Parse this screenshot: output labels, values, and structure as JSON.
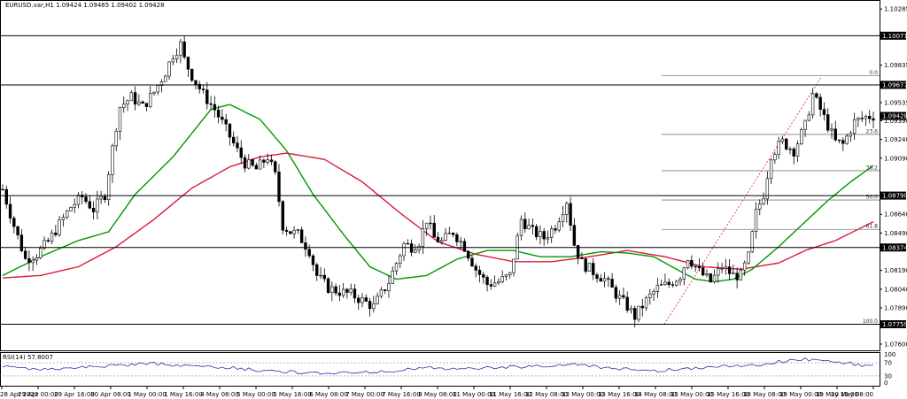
{
  "chart_data": {
    "type": "candlestick",
    "title": "EURUSD.var,H1  1.09424 1.09465 1.09402 1.09428",
    "price_axis": {
      "range": [
        1.0755,
        1.1035
      ],
      "ticks": [
        "1.10285",
        "1.09835",
        "1.09535",
        "1.09390",
        "1.09240",
        "1.09090",
        "1.08640",
        "1.08490",
        "1.08190",
        "1.08040",
        "1.07890",
        "1.07600"
      ]
    },
    "time_axis": {
      "labels": [
        "28 Apr 2020",
        "29 Apr 00:00",
        "29 Apr 16:00",
        "30 Apr 08:00",
        "1 May 00:00",
        "1 May 16:00",
        "4 May 08:00",
        "5 May 00:00",
        "5 May 16:00",
        "6 May 08:00",
        "7 May 00:00",
        "7 May 16:00",
        "8 May 08:00",
        "11 May 00:00",
        "11 May 16:00",
        "12 May 08:00",
        "13 May 00:00",
        "13 May 16:00",
        "14 May 08:00",
        "15 May 00:00",
        "15 May 16:00",
        "18 May 08:00",
        "19 May 00:00",
        "19 May 16:00",
        "20 May 08:00"
      ]
    },
    "horizontal_levels": [
      {
        "value": 1.10071,
        "label": "1.10071"
      },
      {
        "value": 1.09677,
        "label": "1.09677"
      },
      {
        "value": 1.0879,
        "label": "1.08790"
      },
      {
        "value": 1.08374,
        "label": "1.08374"
      },
      {
        "value": 1.07759,
        "label": "1.07759"
      }
    ],
    "current_price": {
      "value": 1.09428,
      "label": "1.09428"
    },
    "fibonacci": {
      "high": 1.0975,
      "low": 1.07759,
      "levels": [
        {
          "ratio": 0.0,
          "label": "0.0"
        },
        {
          "ratio": 0.236,
          "label": "23.6"
        },
        {
          "ratio": 0.382,
          "label": "38.2"
        },
        {
          "ratio": 0.5,
          "label": "50.0"
        },
        {
          "ratio": 0.618,
          "label": "61.8"
        },
        {
          "ratio": 1.0,
          "label": "100.0"
        }
      ]
    },
    "candles_anchor": [
      [
        0,
        1.0884
      ],
      [
        3,
        1.0855
      ],
      [
        6,
        1.0828
      ],
      [
        9,
        1.0832
      ],
      [
        12,
        1.0842
      ],
      [
        15,
        1.0856
      ],
      [
        18,
        1.087
      ],
      [
        21,
        1.0878
      ],
      [
        24,
        1.0868
      ],
      [
        27,
        1.088
      ],
      [
        30,
        1.0935
      ],
      [
        31,
        1.095
      ],
      [
        34,
        1.0958
      ],
      [
        37,
        1.095
      ],
      [
        40,
        1.0962
      ],
      [
        43,
        1.0978
      ],
      [
        45,
        1.0992
      ],
      [
        47,
        1.1
      ],
      [
        48,
        1.0988
      ],
      [
        50,
        1.0975
      ],
      [
        53,
        1.096
      ],
      [
        56,
        1.0948
      ],
      [
        59,
        1.0932
      ],
      [
        62,
        1.0915
      ],
      [
        64,
        1.0905
      ],
      [
        67,
        1.09
      ],
      [
        70,
        1.091
      ],
      [
        72,
        1.0895
      ],
      [
        74,
        1.0855
      ],
      [
        76,
        1.085
      ],
      [
        78,
        1.0848
      ],
      [
        81,
        1.0835
      ],
      [
        83,
        1.0815
      ],
      [
        86,
        1.0805
      ],
      [
        89,
        1.0802
      ],
      [
        92,
        1.08
      ],
      [
        95,
        1.0795
      ],
      [
        98,
        1.079
      ],
      [
        100,
        1.08
      ],
      [
        102,
        1.081
      ],
      [
        104,
        1.0825
      ],
      [
        106,
        1.084
      ],
      [
        108,
        1.0838
      ],
      [
        110,
        1.0842
      ],
      [
        112,
        1.086
      ],
      [
        114,
        1.0845
      ],
      [
        116,
        1.0842
      ],
      [
        119,
        1.085
      ],
      [
        122,
        1.0838
      ],
      [
        125,
        1.082
      ],
      [
        128,
        1.0808
      ],
      [
        131,
        1.081
      ],
      [
        134,
        1.0815
      ],
      [
        137,
        1.086
      ],
      [
        140,
        1.085
      ],
      [
        143,
        1.0845
      ],
      [
        146,
        1.0855
      ],
      [
        149,
        1.0875
      ],
      [
        151,
        1.084
      ],
      [
        153,
        1.0825
      ],
      [
        156,
        1.0818
      ],
      [
        159,
        1.0812
      ],
      [
        162,
        1.08
      ],
      [
        165,
        1.079
      ],
      [
        167,
        1.0782
      ],
      [
        170,
        1.0795
      ],
      [
        173,
        1.0805
      ],
      [
        176,
        1.0808
      ],
      [
        179,
        1.0815
      ],
      [
        181,
        1.083
      ],
      [
        184,
        1.0818
      ],
      [
        187,
        1.081
      ],
      [
        190,
        1.0822
      ],
      [
        193,
        1.0815
      ],
      [
        195,
        1.0815
      ],
      [
        197,
        1.083
      ],
      [
        199,
        1.0865
      ],
      [
        201,
        1.088
      ],
      [
        203,
        1.0912
      ],
      [
        206,
        1.0922
      ],
      [
        209,
        1.0915
      ],
      [
        212,
        1.0935
      ],
      [
        214,
        1.096
      ],
      [
        216,
        1.0948
      ],
      [
        218,
        1.0935
      ],
      [
        220,
        1.0922
      ],
      [
        222,
        1.092
      ],
      [
        225,
        1.0938
      ],
      [
        228,
        1.0942
      ],
      [
        230,
        1.0943
      ]
    ],
    "ma_fast_anchor": [
      [
        0,
        1.0815
      ],
      [
        10,
        1.083
      ],
      [
        20,
        1.0843
      ],
      [
        28,
        1.085
      ],
      [
        35,
        1.088
      ],
      [
        45,
        1.091
      ],
      [
        55,
        1.0948
      ],
      [
        60,
        1.0952
      ],
      [
        68,
        1.094
      ],
      [
        75,
        1.0915
      ],
      [
        82,
        1.088
      ],
      [
        90,
        1.0848
      ],
      [
        97,
        1.0822
      ],
      [
        104,
        1.0812
      ],
      [
        112,
        1.0815
      ],
      [
        120,
        1.0828
      ],
      [
        128,
        1.0835
      ],
      [
        135,
        1.0835
      ],
      [
        142,
        1.083
      ],
      [
        150,
        1.083
      ],
      [
        158,
        1.0834
      ],
      [
        165,
        1.0833
      ],
      [
        172,
        1.083
      ],
      [
        178,
        1.082
      ],
      [
        183,
        1.0812
      ],
      [
        188,
        1.081
      ],
      [
        193,
        1.0812
      ],
      [
        198,
        1.082
      ],
      [
        205,
        1.0838
      ],
      [
        212,
        1.0858
      ],
      [
        218,
        1.0875
      ],
      [
        224,
        1.089
      ],
      [
        230,
        1.0903
      ]
    ],
    "ma_slow_anchor": [
      [
        0,
        1.0813
      ],
      [
        10,
        1.0815
      ],
      [
        20,
        1.0822
      ],
      [
        30,
        1.0838
      ],
      [
        40,
        1.086
      ],
      [
        50,
        1.0885
      ],
      [
        60,
        1.0902
      ],
      [
        68,
        1.091
      ],
      [
        75,
        1.0913
      ],
      [
        85,
        1.0908
      ],
      [
        95,
        1.089
      ],
      [
        105,
        1.0865
      ],
      [
        115,
        1.0842
      ],
      [
        125,
        1.0832
      ],
      [
        135,
        1.0826
      ],
      [
        145,
        1.0826
      ],
      [
        155,
        1.083
      ],
      [
        165,
        1.0835
      ],
      [
        175,
        1.083
      ],
      [
        185,
        1.0822
      ],
      [
        195,
        1.082
      ],
      [
        205,
        1.0825
      ],
      [
        212,
        1.0835
      ],
      [
        220,
        1.0843
      ],
      [
        230,
        1.0858
      ]
    ],
    "rsi": {
      "label": "RSI(14) 57.8007",
      "levels": [
        "100",
        "70",
        "30",
        "0"
      ],
      "values_anchor": [
        [
          0,
          60
        ],
        [
          10,
          50
        ],
        [
          20,
          55
        ],
        [
          30,
          62
        ],
        [
          40,
          68
        ],
        [
          50,
          60
        ],
        [
          60,
          55
        ],
        [
          70,
          45
        ],
        [
          80,
          40
        ],
        [
          90,
          38
        ],
        [
          100,
          42
        ],
        [
          110,
          55
        ],
        [
          120,
          50
        ],
        [
          130,
          55
        ],
        [
          140,
          60
        ],
        [
          150,
          65
        ],
        [
          160,
          55
        ],
        [
          170,
          45
        ],
        [
          180,
          50
        ],
        [
          190,
          58
        ],
        [
          200,
          65
        ],
        [
          210,
          82
        ],
        [
          220,
          75
        ],
        [
          230,
          58
        ]
      ]
    },
    "colors": {
      "bull": "#000000",
      "bear": "#000000",
      "ma_fast": "#009900",
      "ma_slow": "#dd1a3a",
      "rsi_line": "#2233aa",
      "fib": "#7f7f7f",
      "fib_trend": "#e02020",
      "level": "#000000",
      "label_bg": "#000000"
    }
  }
}
